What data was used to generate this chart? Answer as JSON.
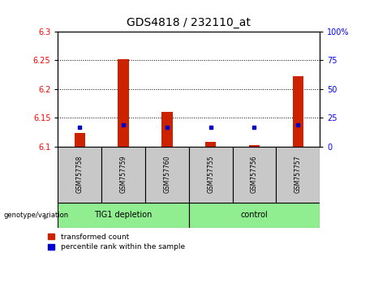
{
  "title": "GDS4818 / 232110_at",
  "samples": [
    "GSM757758",
    "GSM757759",
    "GSM757760",
    "GSM757755",
    "GSM757756",
    "GSM757757"
  ],
  "group_labels": [
    "TIG1 depletion",
    "control"
  ],
  "red_values": [
    6.123,
    6.252,
    6.16,
    6.108,
    6.102,
    6.222
  ],
  "blue_values_raw": [
    6.133,
    6.138,
    6.133,
    6.133,
    6.133,
    6.138
  ],
  "ylim": [
    6.1,
    6.3
  ],
  "yticks": [
    6.1,
    6.15,
    6.2,
    6.25,
    6.3
  ],
  "right_yticks": [
    0,
    25,
    50,
    75,
    100
  ],
  "right_ylim": [
    0,
    100
  ],
  "bar_color": "#CC2200",
  "dot_color": "#0000CC",
  "bg_color": "#C8C8C8",
  "plot_bg": "#FFFFFF",
  "legend_red": "transformed count",
  "legend_blue": "percentile rank within the sample",
  "genotype_label": "genotype/variation",
  "title_fontsize": 10,
  "tick_fontsize": 7,
  "bar_width": 0.25
}
